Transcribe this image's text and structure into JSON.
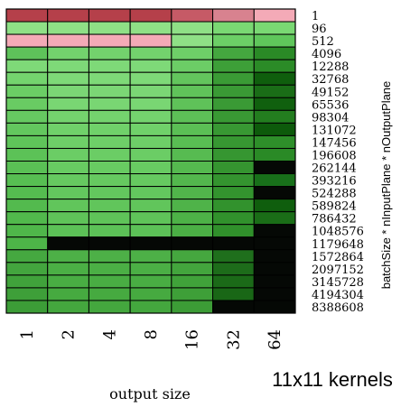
{
  "chart_data": {
    "type": "heatmap",
    "title": "11x11 kernels",
    "xlabel": "output size",
    "ylabel": "batchSize * nInputPlane * nOutputPlane",
    "x_categories": [
      "1",
      "2",
      "4",
      "8",
      "16",
      "32",
      "64"
    ],
    "y_categories": [
      "1",
      "96",
      "512",
      "4096",
      "12288",
      "32768",
      "49152",
      "65536",
      "98304",
      "131072",
      "147456",
      "196608",
      "262144",
      "393216",
      "524288",
      "589824",
      "786432",
      "1048576",
      "1179648",
      "1572864",
      "2097152",
      "3145728",
      "4194304",
      "8388608"
    ],
    "cell_colors": [
      [
        "#b5404a",
        "#b5404a",
        "#b5404a",
        "#b5404a",
        "#c65a66",
        "#d8828f",
        "#f4aab7"
      ],
      [
        "#8fe086",
        "#8fe086",
        "#8fe086",
        "#8fe086",
        "#8fe086",
        "#7ad873",
        "#7ad873"
      ],
      [
        "#f4aab7",
        "#f4aab7",
        "#f4aab7",
        "#f4aab7",
        "#8fe086",
        "#6ccf66",
        "#5fc65b"
      ],
      [
        "#5ec25a",
        "#73d26d",
        "#73d26d",
        "#73d26d",
        "#6ecf68",
        "#44a73f",
        "#2a8a26"
      ],
      [
        "#7ed978",
        "#7ed978",
        "#7ed978",
        "#7ed978",
        "#6ccd66",
        "#3d9f38",
        "#2b8b27"
      ],
      [
        "#74d46e",
        "#7ed978",
        "#7ed978",
        "#7ed978",
        "#63c55d",
        "#3a9b35",
        "#0f5e0d"
      ],
      [
        "#6bcd65",
        "#7bd675",
        "#7bd675",
        "#7bd675",
        "#60c35a",
        "#3a9a35",
        "#1a6d17"
      ],
      [
        "#69cb63",
        "#79d673",
        "#79d673",
        "#79d673",
        "#5fc259",
        "#3a9a35",
        "#10600e"
      ],
      [
        "#66c961",
        "#74d36e",
        "#74d36e",
        "#74d36e",
        "#5dc057",
        "#399934",
        "#237d1f"
      ],
      [
        "#63c75e",
        "#70d16a",
        "#70d16a",
        "#70d16a",
        "#5bbf55",
        "#389833",
        "#0d5a0b"
      ],
      [
        "#5fc45a",
        "#6ecf68",
        "#6ecf68",
        "#6ecf68",
        "#59bd53",
        "#379732",
        "#2e8f2a"
      ],
      [
        "#5cc257",
        "#6bcd65",
        "#6bcd65",
        "#6bcd65",
        "#57bb51",
        "#369631",
        "#2a8a26"
      ],
      [
        "#5ac055",
        "#68cb62",
        "#68cb62",
        "#68cb62",
        "#55b94f",
        "#359530",
        "#050805"
      ],
      [
        "#57be52",
        "#66c960",
        "#66c960",
        "#66c960",
        "#53b74d",
        "#34942f",
        "#18701a"
      ],
      [
        "#55bc50",
        "#63c75e",
        "#63c75e",
        "#63c75e",
        "#51b54b",
        "#33932e",
        "#050805"
      ],
      [
        "#53ba4e",
        "#61c55b",
        "#61c55b",
        "#61c55b",
        "#4fb349",
        "#32922d",
        "#0f5e0d"
      ],
      [
        "#51b84c",
        "#5fc359",
        "#5fc359",
        "#5fc359",
        "#4db147",
        "#31912c",
        "#1a6d17"
      ],
      [
        "#4fb64a",
        "#5cc157",
        "#5cc157",
        "#5cc157",
        "#4baf45",
        "#30902b",
        "#050805"
      ],
      [
        "#4db448",
        "#050805",
        "#050805",
        "#050805",
        "#050805",
        "#050805",
        "#050805"
      ],
      [
        "#45a840",
        "#4db047",
        "#4db047",
        "#4db047",
        "#45a73f",
        "#1f6f1c",
        "#050805"
      ],
      [
        "#43a53e",
        "#4baf45",
        "#4baf45",
        "#4baf45",
        "#43a53d",
        "#1d6c1a",
        "#050805"
      ],
      [
        "#40a23b",
        "#49ad43",
        "#49ad43",
        "#49ad43",
        "#40a23a",
        "#1b6a18",
        "#050805"
      ],
      [
        "#3e9f39",
        "#46aa40",
        "#46aa40",
        "#46aa40",
        "#3e9f38",
        "#196716",
        "#050805"
      ],
      [
        "#3c9d37",
        "#44a73e",
        "#44a73e",
        "#44a73e",
        "#3c9c36",
        "#050805",
        "#050805"
      ]
    ],
    "grid": true,
    "legend": "none"
  }
}
